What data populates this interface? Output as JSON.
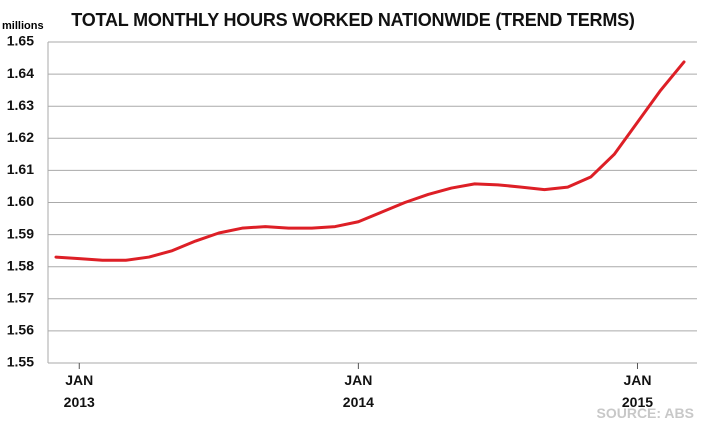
{
  "chart_data": {
    "type": "line",
    "title": "TOTAL MONTHLY HOURS WORKED NATIONWIDE (TREND TERMS)",
    "y_unit": "millions",
    "source": "SOURCE: ABS",
    "categories": [
      null,
      "JAN 2013",
      null,
      null,
      null,
      null,
      null,
      null,
      null,
      null,
      null,
      null,
      null,
      "JAN 2014",
      null,
      null,
      null,
      null,
      null,
      null,
      null,
      null,
      null,
      null,
      null,
      "JAN 2015",
      null,
      null
    ],
    "series": [
      {
        "name": "Total monthly hours worked",
        "color": "#dd1f26",
        "values": [
          1.583,
          1.5825,
          1.582,
          1.582,
          1.583,
          1.585,
          1.588,
          1.5905,
          1.592,
          1.5925,
          1.592,
          1.592,
          1.5925,
          1.594,
          1.597,
          1.6,
          1.6025,
          1.6045,
          1.6058,
          1.6055,
          1.6048,
          1.604,
          1.6048,
          1.608,
          1.615,
          1.625,
          1.635,
          1.6438
        ]
      }
    ],
    "ylim": [
      1.55,
      1.65
    ],
    "yticks": [
      1.55,
      1.56,
      1.57,
      1.58,
      1.59,
      {
        "value": 1.6,
        "label": "1.60"
      },
      1.61,
      1.62,
      1.63,
      1.64,
      1.65
    ],
    "grid": true
  }
}
